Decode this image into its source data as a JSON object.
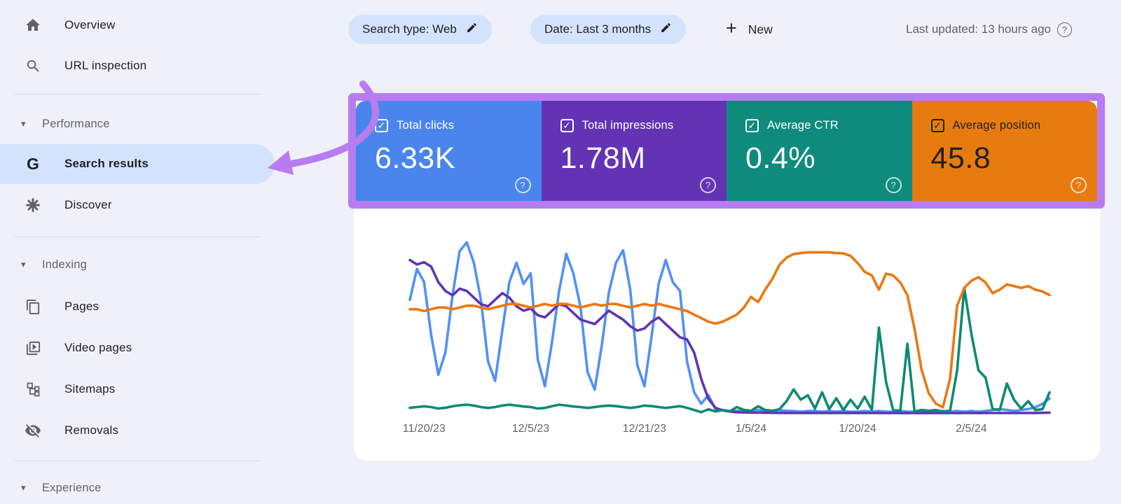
{
  "sidebar": {
    "items": [
      {
        "label": "Overview",
        "icon": "home-icon"
      },
      {
        "label": "URL inspection",
        "icon": "search-icon"
      },
      {
        "label": "Performance",
        "type": "section"
      },
      {
        "label": "Search results",
        "icon": "google-g-icon",
        "selected": true
      },
      {
        "label": "Discover",
        "icon": "discover-icon"
      },
      {
        "label": "Indexing",
        "type": "section"
      },
      {
        "label": "Pages",
        "icon": "pages-icon"
      },
      {
        "label": "Video pages",
        "icon": "video-pages-icon"
      },
      {
        "label": "Sitemaps",
        "icon": "sitemaps-icon"
      },
      {
        "label": "Removals",
        "icon": "removals-icon"
      },
      {
        "label": "Experience",
        "type": "section"
      }
    ],
    "selected_item": "Search results",
    "selected_pill_color": "#d3e3fd"
  },
  "toolbar": {
    "search_type_chip": "Search type: Web",
    "date_chip": "Date: Last 3 months",
    "new_button_label": "New",
    "last_updated": "Last updated: 13 hours ago",
    "chip_color": "#d3e3fd"
  },
  "icons": {
    "check": "✓",
    "question": "?",
    "plus": "+",
    "caret": "▾",
    "g": "G"
  },
  "metrics": [
    {
      "label": "Total clicks",
      "value": "6.33K",
      "bg": "#4a85ee",
      "text": "#ffffff",
      "checked": true
    },
    {
      "label": "Total impressions",
      "value": "1.78M",
      "bg": "#6233b5",
      "text": "#ffffff",
      "checked": true
    },
    {
      "label": "Average CTR",
      "value": "0.4%",
      "bg": "#0f8b7d",
      "text": "#ffffff",
      "checked": true
    },
    {
      "label": "Average position",
      "value": "45.8",
      "bg": "#e87b10",
      "text": "#202124",
      "checked": true
    }
  ],
  "annotation": {
    "highlight_box_color": "#b77cf0",
    "arrow_color": "#b77cf0"
  },
  "chart_data": {
    "type": "line",
    "grid": false,
    "legend_position": "none",
    "x_ticks": [
      {
        "index": 2,
        "label": "11/20/23"
      },
      {
        "index": 17,
        "label": "12/5/23"
      },
      {
        "index": 33,
        "label": "12/21/23"
      },
      {
        "index": 48,
        "label": "1/5/24"
      },
      {
        "index": 63,
        "label": "1/20/24"
      },
      {
        "index": 79,
        "label": "2/5/24"
      }
    ],
    "series": [
      {
        "name": "Total clicks",
        "unit": "clicks/day",
        "color": "#5290f5",
        "plot_min": 0,
        "plot_max": 200,
        "invert_axis": false,
        "values": [
          130,
          165,
          150,
          90,
          45,
          70,
          135,
          185,
          195,
          172,
          130,
          60,
          38,
          95,
          150,
          172,
          148,
          160,
          62,
          32,
          82,
          140,
          182,
          160,
          122,
          48,
          28,
          78,
          138,
          172,
          186,
          142,
          56,
          32,
          88,
          148,
          175,
          150,
          140,
          60,
          25,
          12,
          22,
          6,
          5,
          4,
          4,
          5,
          4,
          5,
          4,
          4,
          5,
          4,
          4,
          3,
          4,
          4,
          3,
          4,
          3,
          4,
          3,
          3,
          4,
          3,
          4,
          3,
          3,
          4,
          3,
          3,
          4,
          3,
          3,
          4,
          3,
          4,
          3,
          4,
          3,
          4,
          5,
          6,
          5,
          4,
          5,
          6,
          8,
          12,
          18
        ]
      },
      {
        "name": "Total impressions",
        "unit": "impressions/day",
        "color": "#5e35b1",
        "plot_min": 0,
        "plot_max": 40000,
        "invert_axis": false,
        "values": [
          35000,
          34000,
          34500,
          33500,
          30000,
          28000,
          27000,
          28500,
          28000,
          26500,
          25000,
          24500,
          26000,
          27500,
          26500,
          24500,
          23500,
          24000,
          22500,
          22000,
          23500,
          25000,
          24500,
          23000,
          21500,
          21000,
          20500,
          22000,
          23500,
          22500,
          21500,
          20000,
          19000,
          19500,
          21000,
          22000,
          20500,
          19000,
          17500,
          17000,
          14000,
          8000,
          3500,
          1500,
          900,
          650,
          500,
          450,
          420,
          400,
          380,
          360,
          350,
          340,
          340,
          330,
          330,
          320,
          330,
          320,
          330,
          320,
          310,
          320,
          310,
          320,
          310,
          300,
          310,
          300,
          300,
          310,
          300,
          300,
          310,
          300,
          310,
          300,
          310,
          320,
          300,
          310,
          320,
          330,
          320,
          310,
          320,
          330,
          340,
          360,
          380
        ]
      },
      {
        "name": "Average CTR",
        "unit": "%",
        "color": "#0d8a74",
        "plot_min": 0,
        "plot_max": 12,
        "invert_axis": false,
        "values": [
          0.45,
          0.5,
          0.55,
          0.5,
          0.4,
          0.45,
          0.55,
          0.62,
          0.66,
          0.6,
          0.5,
          0.44,
          0.5,
          0.6,
          0.66,
          0.6,
          0.54,
          0.5,
          0.4,
          0.44,
          0.56,
          0.66,
          0.6,
          0.54,
          0.5,
          0.44,
          0.5,
          0.56,
          0.6,
          0.56,
          0.5,
          0.44,
          0.5,
          0.6,
          0.56,
          0.5,
          0.44,
          0.5,
          0.56,
          0.45,
          0.3,
          0.15,
          0.35,
          0.2,
          0.3,
          0.2,
          0.5,
          0.3,
          0.25,
          0.55,
          0.3,
          0.25,
          0.35,
          0.9,
          1.7,
          1.0,
          1.3,
          0.4,
          1.5,
          0.35,
          1.1,
          0.3,
          1.0,
          0.4,
          1.2,
          0.3,
          5.9,
          2.2,
          0.3,
          0.25,
          4.8,
          0.2,
          0.3,
          0.25,
          0.3,
          0.2,
          0.25,
          3.0,
          8.6,
          5.5,
          3.0,
          2.5,
          0.35,
          0.3,
          2.1,
          1.0,
          0.4,
          0.9,
          0.3,
          0.35,
          1.5
        ]
      },
      {
        "name": "Average position",
        "unit": "position",
        "color": "#ec7710",
        "plot_min": 1,
        "plot_max": 100,
        "invert_axis": true,
        "values": [
          41,
          41,
          42,
          41,
          40,
          40,
          41,
          40,
          39,
          39,
          40,
          41,
          40,
          39,
          38,
          38,
          39,
          40,
          39,
          38,
          39,
          38,
          38,
          39,
          40,
          39,
          38,
          39,
          38,
          38,
          39,
          40,
          39,
          38,
          39,
          38,
          39,
          40,
          41,
          42,
          44,
          46,
          48,
          49,
          48,
          46,
          44,
          40,
          34,
          37,
          30,
          24,
          16,
          12,
          10,
          9.5,
          9,
          9,
          9,
          9,
          9.5,
          9.7,
          11,
          15,
          20,
          22,
          30,
          21,
          22,
          26,
          33,
          52,
          75,
          88,
          94,
          96,
          80,
          39,
          29,
          25,
          23,
          26,
          32,
          30,
          27,
          28,
          29,
          28,
          30,
          31,
          33
        ]
      }
    ]
  }
}
